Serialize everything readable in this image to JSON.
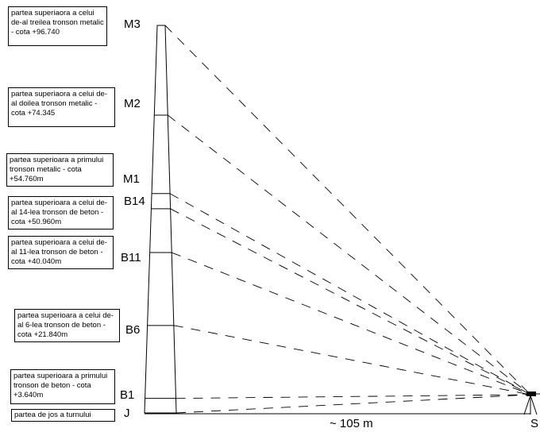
{
  "levels": [
    {
      "id": "M3",
      "label": "M3",
      "note": "partea superiaora a celui de-al treilea tronson metalic - cota +96.740",
      "elevation": 96.74
    },
    {
      "id": "M2",
      "label": "M2",
      "note": "partea superiaora a celui de-al doilea tronson metalic - cota +74.345",
      "elevation": 74.345
    },
    {
      "id": "M1",
      "label": "M1",
      "note": "partea superioara a primului tronson metalic - cota +54.760m",
      "elevation": 54.76
    },
    {
      "id": "B14",
      "label": "B14",
      "note": "partea superioara a celui de-al 14-lea tronson de beton - cota +50.960m",
      "elevation": 50.96
    },
    {
      "id": "B11",
      "label": "B11",
      "note": "partea superioara a celui de-al 11-lea tronson de beton - cota +40.040m",
      "elevation": 40.04
    },
    {
      "id": "B6",
      "label": "B6",
      "note": "partea superioara a celui de-al 6-lea tronson de beton - cota +21.840m",
      "elevation": 21.84
    },
    {
      "id": "B1",
      "label": "B1",
      "note": "partea superioara a primului tronson de beton - cota +3.640m",
      "elevation": 3.64
    },
    {
      "id": "J",
      "label": "J",
      "note": "partea de jos a turnului",
      "elevation": 0
    }
  ],
  "distance_label": "~ 105 m",
  "station_label": "S",
  "colors": {
    "line": "#000000",
    "background": "#ffffff"
  }
}
